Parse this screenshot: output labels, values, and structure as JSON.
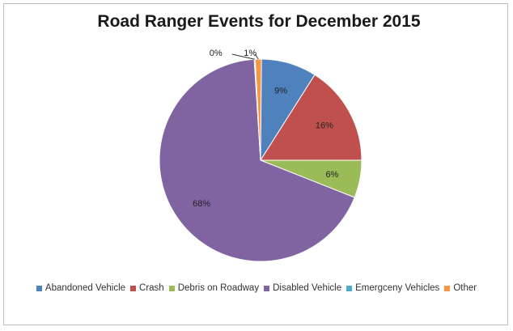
{
  "chart_data": {
    "type": "pie",
    "title": "Road Ranger Events for December 2015",
    "slices": [
      {
        "label": "Abandoned Vehicle",
        "value": 9,
        "display": "9%",
        "color": "#4f81bd"
      },
      {
        "label": "Crash",
        "value": 16,
        "display": "16%",
        "color": "#c0504d"
      },
      {
        "label": "Debris on Roadway",
        "value": 6,
        "display": "6%",
        "color": "#9bbb59"
      },
      {
        "label": "Disabled Vehicle",
        "value": 68,
        "display": "68%",
        "color": "#8064a2"
      },
      {
        "label": "Emergceny Vehicles",
        "value": 0,
        "display": "0%",
        "color": "#4bacc6"
      },
      {
        "label": "Other",
        "value": 1,
        "display": "1%",
        "color": "#f79646"
      }
    ],
    "legend_position": "bottom"
  }
}
